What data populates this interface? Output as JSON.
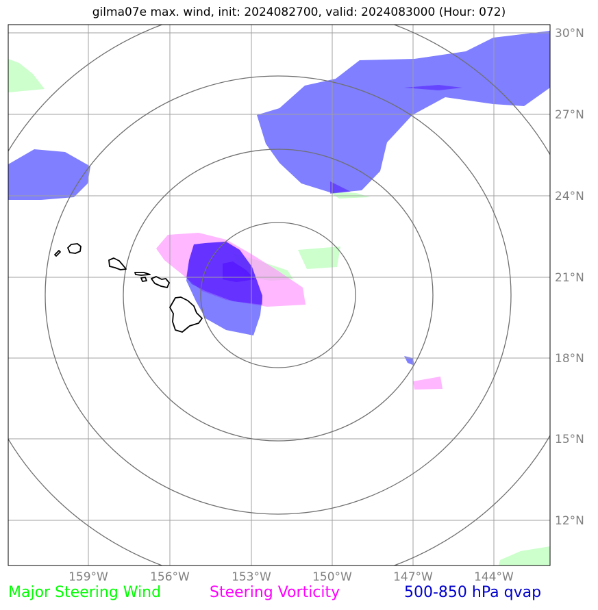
{
  "title": "gilma07e max. wind, init: 2024082700, valid: 2024083000 (Hour: 072)",
  "lat_labels": [
    "30°N",
    "27°N",
    "24°N",
    "21°N",
    "18°N",
    "15°N",
    "12°N"
  ],
  "lon_labels": [
    "159°W",
    "156°W",
    "153°W",
    "150°W",
    "147°W",
    "144°W"
  ],
  "legend": {
    "wind": "Major Steering Wind",
    "vorticity": "Steering Vorticity",
    "qvap": "500-850 hPa qvap"
  },
  "colors": {
    "wind": "#ccffcc",
    "vorticity": "#ff99ff",
    "qvap": "#0000ff",
    "qvap_dark": "#4a00ff",
    "grid": "#808080",
    "coast": "#000000"
  }
}
